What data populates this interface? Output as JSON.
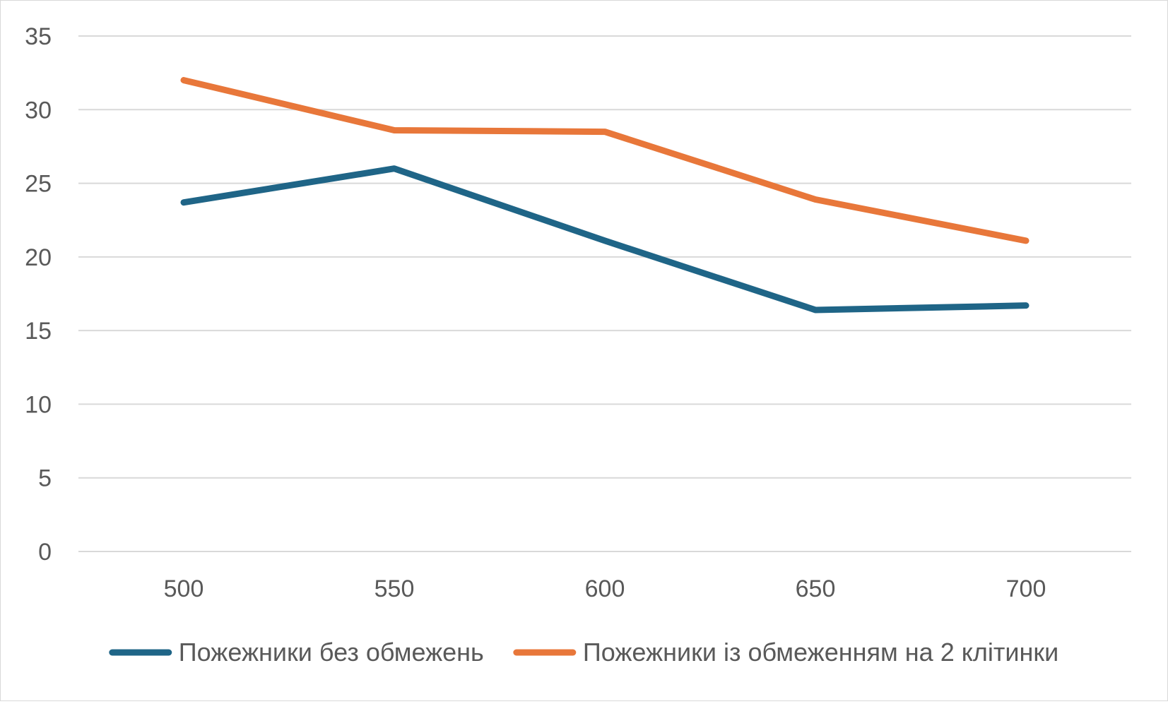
{
  "chart_data": {
    "type": "line",
    "categories": [
      "500",
      "550",
      "600",
      "650",
      "700"
    ],
    "x": [
      500,
      550,
      600,
      650,
      700
    ],
    "ylim": [
      0,
      35
    ],
    "y_ticks": [
      0,
      5,
      10,
      15,
      20,
      25,
      30,
      35
    ],
    "grid": true,
    "legend_position": "bottom",
    "title": "",
    "xlabel": "",
    "ylabel": "",
    "series": [
      {
        "name": "Пожежники без обмежень",
        "color": "#1f6587",
        "values": [
          23.7,
          26.0,
          21.1,
          16.4,
          16.7
        ]
      },
      {
        "name": "Пожежники із обмеженням на 2 клітинки",
        "color": "#e8773a",
        "values": [
          32.0,
          28.6,
          28.5,
          23.9,
          21.1
        ]
      }
    ]
  }
}
